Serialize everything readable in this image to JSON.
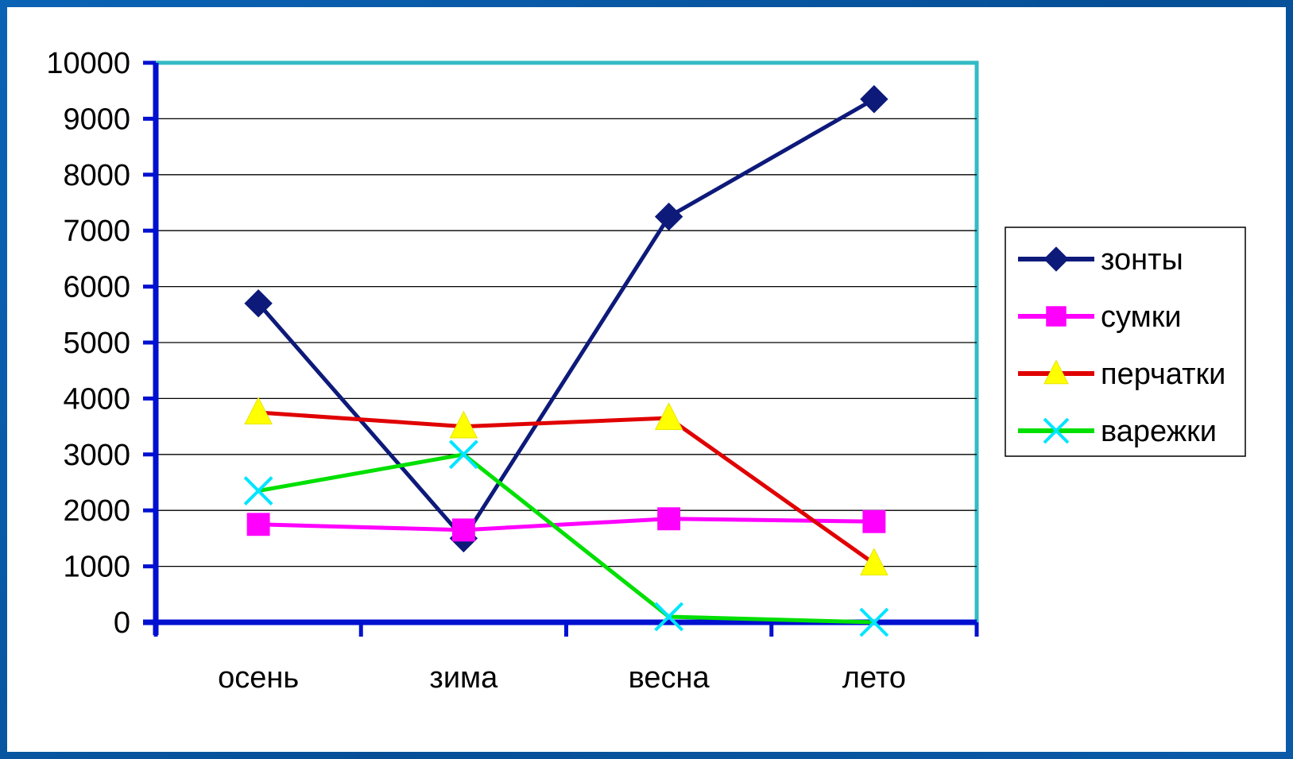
{
  "chart_data": {
    "type": "line",
    "categories": [
      "осень",
      "зима",
      "весна",
      "лето"
    ],
    "series": [
      {
        "name": "зонты",
        "values": [
          5700,
          1500,
          7250,
          9350
        ],
        "color": "#0d1a7a",
        "marker": "diamond"
      },
      {
        "name": "сумки",
        "values": [
          1750,
          1650,
          1850,
          1800
        ],
        "color": "#ff00ff",
        "marker": "square"
      },
      {
        "name": "перчатки",
        "values": [
          3750,
          3500,
          3650,
          1050
        ],
        "color": "#e00000",
        "marker": "triangle"
      },
      {
        "name": "варежки",
        "values": [
          2350,
          3000,
          100,
          0
        ],
        "color": "#00e000",
        "marker": "x",
        "marker_color": "#00e5ff"
      }
    ],
    "ylim": [
      0,
      10000
    ],
    "yticks": [
      "0",
      "1000",
      "2000",
      "3000",
      "4000",
      "5000",
      "6000",
      "7000",
      "8000",
      "9000",
      "10000"
    ],
    "grid": true,
    "legend_position": "right",
    "axis_color": "#0010d0",
    "plot_border_color": "#33bbc4"
  }
}
